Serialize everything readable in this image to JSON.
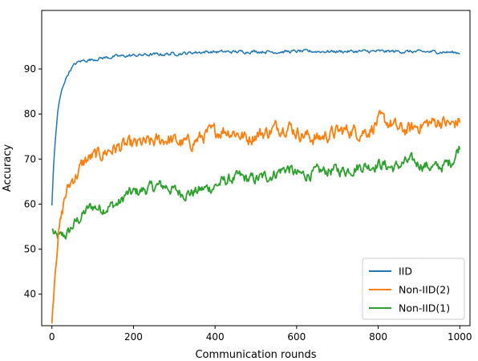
{
  "chart_data": {
    "type": "line",
    "title": "",
    "xlabel": "Communication rounds",
    "ylabel": "Accuracy",
    "xlim": [
      -25,
      1025
    ],
    "ylim": [
      33,
      103
    ],
    "xticks": [
      0,
      200,
      400,
      600,
      800,
      1000
    ],
    "yticks": [
      40,
      50,
      60,
      70,
      80,
      90
    ],
    "grid": false,
    "legend_position": "lower-right",
    "series": [
      {
        "name": "IID",
        "color": "#1f77b4",
        "points": [
          [
            0,
            59.7
          ],
          [
            5,
            70
          ],
          [
            10,
            76
          ],
          [
            15,
            81
          ],
          [
            20,
            83.5
          ],
          [
            25,
            85.5
          ],
          [
            30,
            87
          ],
          [
            35,
            88
          ],
          [
            40,
            89
          ],
          [
            45,
            89.8
          ],
          [
            50,
            90.4
          ],
          [
            55,
            90.9
          ],
          [
            60,
            91.3
          ],
          [
            65,
            91.5
          ],
          [
            70,
            91.7
          ],
          [
            80,
            91.9
          ],
          [
            90,
            92.0
          ],
          [
            100,
            92.1
          ],
          [
            120,
            92.4
          ],
          [
            140,
            92.6
          ],
          [
            160,
            92.8
          ],
          [
            180,
            92.9
          ],
          [
            200,
            93.0
          ],
          [
            220,
            93.1
          ],
          [
            250,
            93.2
          ],
          [
            280,
            93.3
          ],
          [
            300,
            93.4
          ],
          [
            330,
            93.5
          ],
          [
            350,
            93.7
          ],
          [
            380,
            93.8
          ],
          [
            400,
            93.8
          ],
          [
            450,
            93.8
          ],
          [
            500,
            93.9
          ],
          [
            550,
            93.8
          ],
          [
            600,
            93.9
          ],
          [
            650,
            93.9
          ],
          [
            700,
            93.9
          ],
          [
            750,
            93.9
          ],
          [
            800,
            93.9
          ],
          [
            850,
            93.9
          ],
          [
            900,
            93.8
          ],
          [
            950,
            93.8
          ],
          [
            1000,
            93.6
          ]
        ],
        "noise": 0.35
      },
      {
        "name": "Non-IID(2)",
        "color": "#ff7f0e",
        "points": [
          [
            0,
            33.5
          ],
          [
            3,
            38
          ],
          [
            6,
            43
          ],
          [
            9,
            47
          ],
          [
            12,
            50
          ],
          [
            15,
            53
          ],
          [
            20,
            55.5
          ],
          [
            25,
            57.5
          ],
          [
            30,
            61
          ],
          [
            40,
            63.5
          ],
          [
            50,
            65.5
          ],
          [
            60,
            66.5
          ],
          [
            70,
            68
          ],
          [
            80,
            69.5
          ],
          [
            100,
            70.5
          ],
          [
            120,
            71
          ],
          [
            140,
            72
          ],
          [
            160,
            72.5
          ],
          [
            180,
            73
          ],
          [
            200,
            73
          ],
          [
            220,
            73.5
          ],
          [
            240,
            73.5
          ],
          [
            260,
            74
          ],
          [
            280,
            74.5
          ],
          [
            300,
            74
          ],
          [
            320,
            73.5
          ],
          [
            340,
            73.5
          ],
          [
            360,
            74.5
          ],
          [
            380,
            75.5
          ],
          [
            400,
            76
          ],
          [
            420,
            76.5
          ],
          [
            450,
            76
          ],
          [
            480,
            74.5
          ],
          [
            500,
            75.5
          ],
          [
            530,
            76
          ],
          [
            550,
            77
          ],
          [
            580,
            77.5
          ],
          [
            600,
            76
          ],
          [
            630,
            75
          ],
          [
            650,
            74.5
          ],
          [
            680,
            75.5
          ],
          [
            700,
            76
          ],
          [
            730,
            76.5
          ],
          [
            750,
            76
          ],
          [
            780,
            76.5
          ],
          [
            800,
            78.5
          ],
          [
            830,
            78
          ],
          [
            850,
            76.5
          ],
          [
            880,
            76.5
          ],
          [
            900,
            77.5
          ],
          [
            930,
            78
          ],
          [
            950,
            78.5
          ],
          [
            980,
            77.5
          ],
          [
            1000,
            78.5
          ]
        ],
        "noise": 1.6
      },
      {
        "name": "Non-IID(1)",
        "color": "#2ca02c",
        "points": [
          [
            0,
            54.5
          ],
          [
            10,
            52.5
          ],
          [
            20,
            52.5
          ],
          [
            30,
            53
          ],
          [
            40,
            53.5
          ],
          [
            50,
            55
          ],
          [
            60,
            56
          ],
          [
            70,
            57
          ],
          [
            80,
            58
          ],
          [
            90,
            59
          ],
          [
            100,
            59.5
          ],
          [
            120,
            59
          ],
          [
            140,
            59.5
          ],
          [
            160,
            60
          ],
          [
            170,
            60.5
          ],
          [
            180,
            62
          ],
          [
            200,
            62.5
          ],
          [
            220,
            63
          ],
          [
            240,
            63.5
          ],
          [
            260,
            64
          ],
          [
            280,
            64
          ],
          [
            300,
            63
          ],
          [
            320,
            62.5
          ],
          [
            340,
            62.5
          ],
          [
            360,
            63
          ],
          [
            380,
            63.5
          ],
          [
            400,
            64
          ],
          [
            420,
            65
          ],
          [
            440,
            65.5
          ],
          [
            460,
            66
          ],
          [
            480,
            65.5
          ],
          [
            500,
            65.5
          ],
          [
            520,
            66
          ],
          [
            540,
            66.5
          ],
          [
            560,
            67.5
          ],
          [
            580,
            68
          ],
          [
            600,
            66.5
          ],
          [
            620,
            66.5
          ],
          [
            650,
            67
          ],
          [
            680,
            67.5
          ],
          [
            700,
            67.5
          ],
          [
            720,
            67.5
          ],
          [
            740,
            68
          ],
          [
            760,
            68.5
          ],
          [
            780,
            68.5
          ],
          [
            800,
            69
          ],
          [
            820,
            68.5
          ],
          [
            840,
            68
          ],
          [
            860,
            69
          ],
          [
            880,
            69.5
          ],
          [
            900,
            69
          ],
          [
            920,
            68.5
          ],
          [
            940,
            68
          ],
          [
            960,
            68.5
          ],
          [
            980,
            69.5
          ],
          [
            990,
            71
          ],
          [
            1000,
            73
          ]
        ],
        "noise": 1.3
      }
    ]
  }
}
